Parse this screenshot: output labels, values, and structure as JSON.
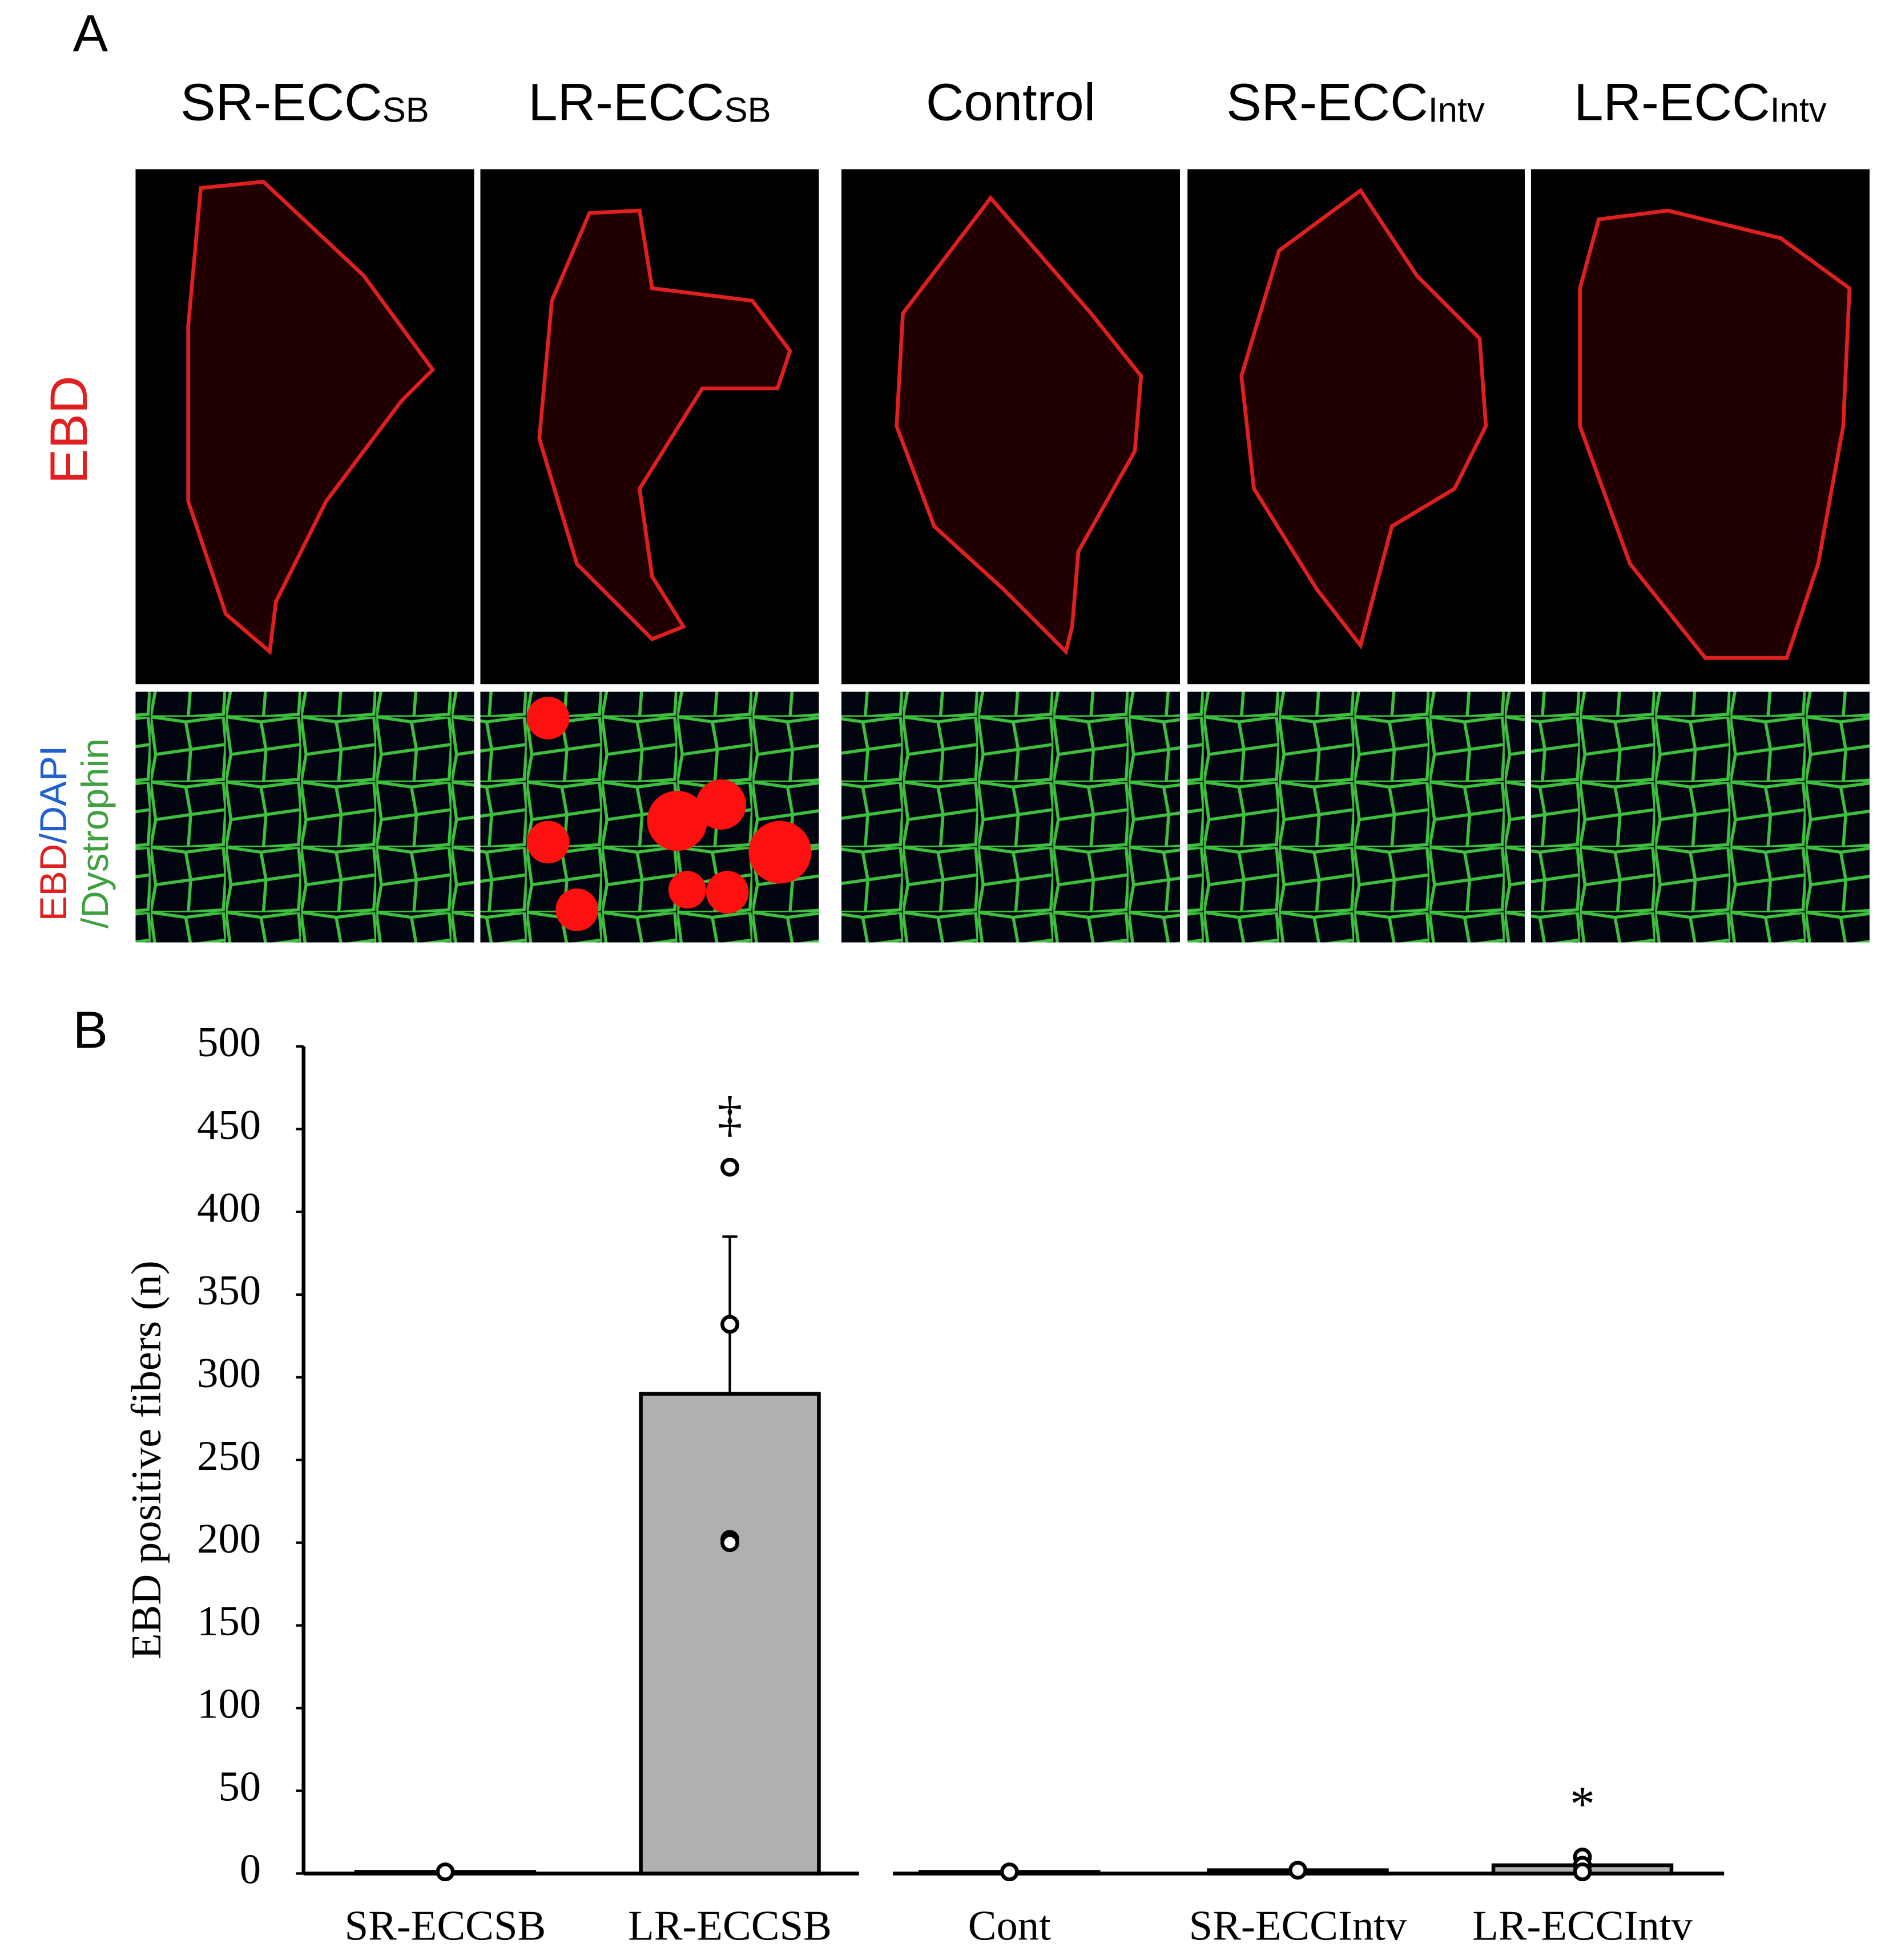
{
  "panel_a": {
    "label": "A",
    "columns": [
      {
        "text": "SR-ECC",
        "sub": "SB"
      },
      {
        "text": "LR-ECC",
        "sub": "SB"
      },
      {
        "text": "Control",
        "sub": null
      },
      {
        "text": "SR-ECC",
        "sub": "Intv"
      },
      {
        "text": "LR-ECC",
        "sub": "Intv"
      }
    ],
    "row_labels": [
      "EBD",
      [
        "EBD",
        "/DAPI",
        "/Dystrophin"
      ]
    ]
  },
  "chart_data": {
    "type": "bar",
    "panel_label": "B",
    "ylabel": "EBD positive fibers (n)",
    "categories": [
      "SR-ECCSB",
      "LR-ECCSB",
      "Cont",
      "SR-ECCIntv",
      "LR-ECCIntv"
    ],
    "values": [
      1,
      290,
      1,
      2,
      5
    ],
    "errors": [
      null,
      95,
      null,
      null,
      null
    ],
    "points": [
      [
        1
      ],
      [
        427,
        332,
        202,
        200
      ],
      [
        1
      ],
      [
        2
      ],
      [
        10,
        5,
        1
      ]
    ],
    "annotations": [
      null,
      "‡",
      null,
      null,
      "*"
    ],
    "color": "#b0b0b0",
    "ylim": [
      0,
      500
    ],
    "yticks": [
      0,
      50,
      100,
      150,
      200,
      250,
      300,
      350,
      400,
      450,
      500
    ]
  }
}
